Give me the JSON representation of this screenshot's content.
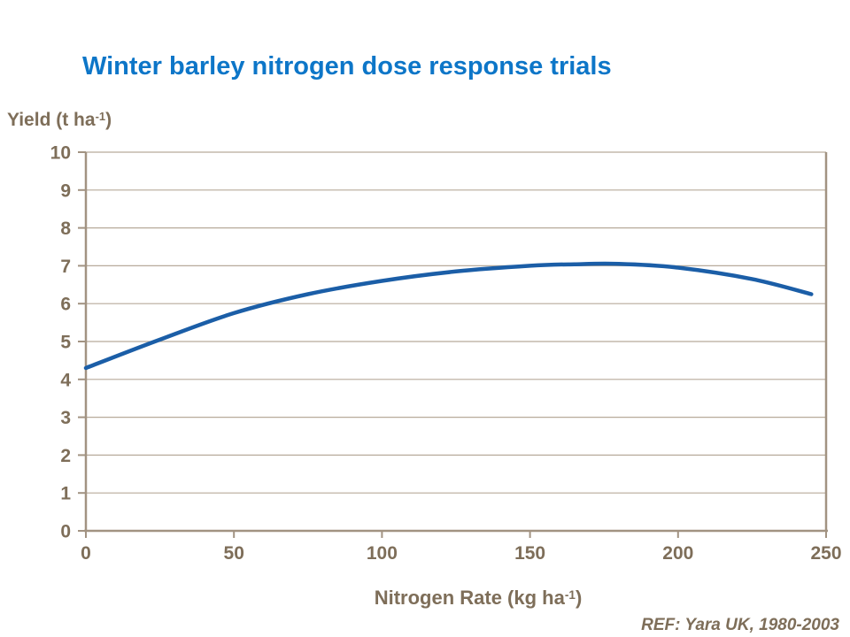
{
  "page": {
    "background_color": "#ffffff"
  },
  "title": {
    "text": "Winter barley nitrogen dose response trials",
    "color": "#0D76C8"
  },
  "footer": {
    "ref_text": "REF: Yara UK, 1980-2003",
    "color": "#7E6E59"
  },
  "chart_data": {
    "type": "line",
    "title": "Winter barley nitrogen dose response trials",
    "xlabel": {
      "prefix": "Nitrogen Rate (kg ha",
      "sup": "-1",
      "suffix": ")"
    },
    "ylabel": {
      "prefix": "Yield (t ha",
      "sup": "-1",
      "suffix": ")"
    },
    "xlim": [
      0,
      250
    ],
    "ylim": [
      0,
      10
    ],
    "x_ticks": [
      0,
      50,
      100,
      150,
      200,
      250
    ],
    "y_ticks": [
      0,
      1,
      2,
      3,
      4,
      5,
      6,
      7,
      8,
      9,
      10
    ],
    "grid": "horizontal",
    "legend": "none",
    "series": [
      {
        "name": "winter-barley-yield-response",
        "color": "#1B5EA7",
        "line_width": 4.5,
        "x": [
          0,
          25,
          50,
          75,
          100,
          125,
          150,
          165,
          180,
          200,
          225,
          245
        ],
        "y": [
          4.3,
          5.05,
          5.75,
          6.25,
          6.6,
          6.85,
          7.0,
          7.04,
          7.05,
          6.95,
          6.65,
          6.25
        ]
      }
    ],
    "colors": {
      "axis_line": "#A29382",
      "grid_line": "#B7AA9A",
      "tick_text": "#7E6E59"
    }
  }
}
